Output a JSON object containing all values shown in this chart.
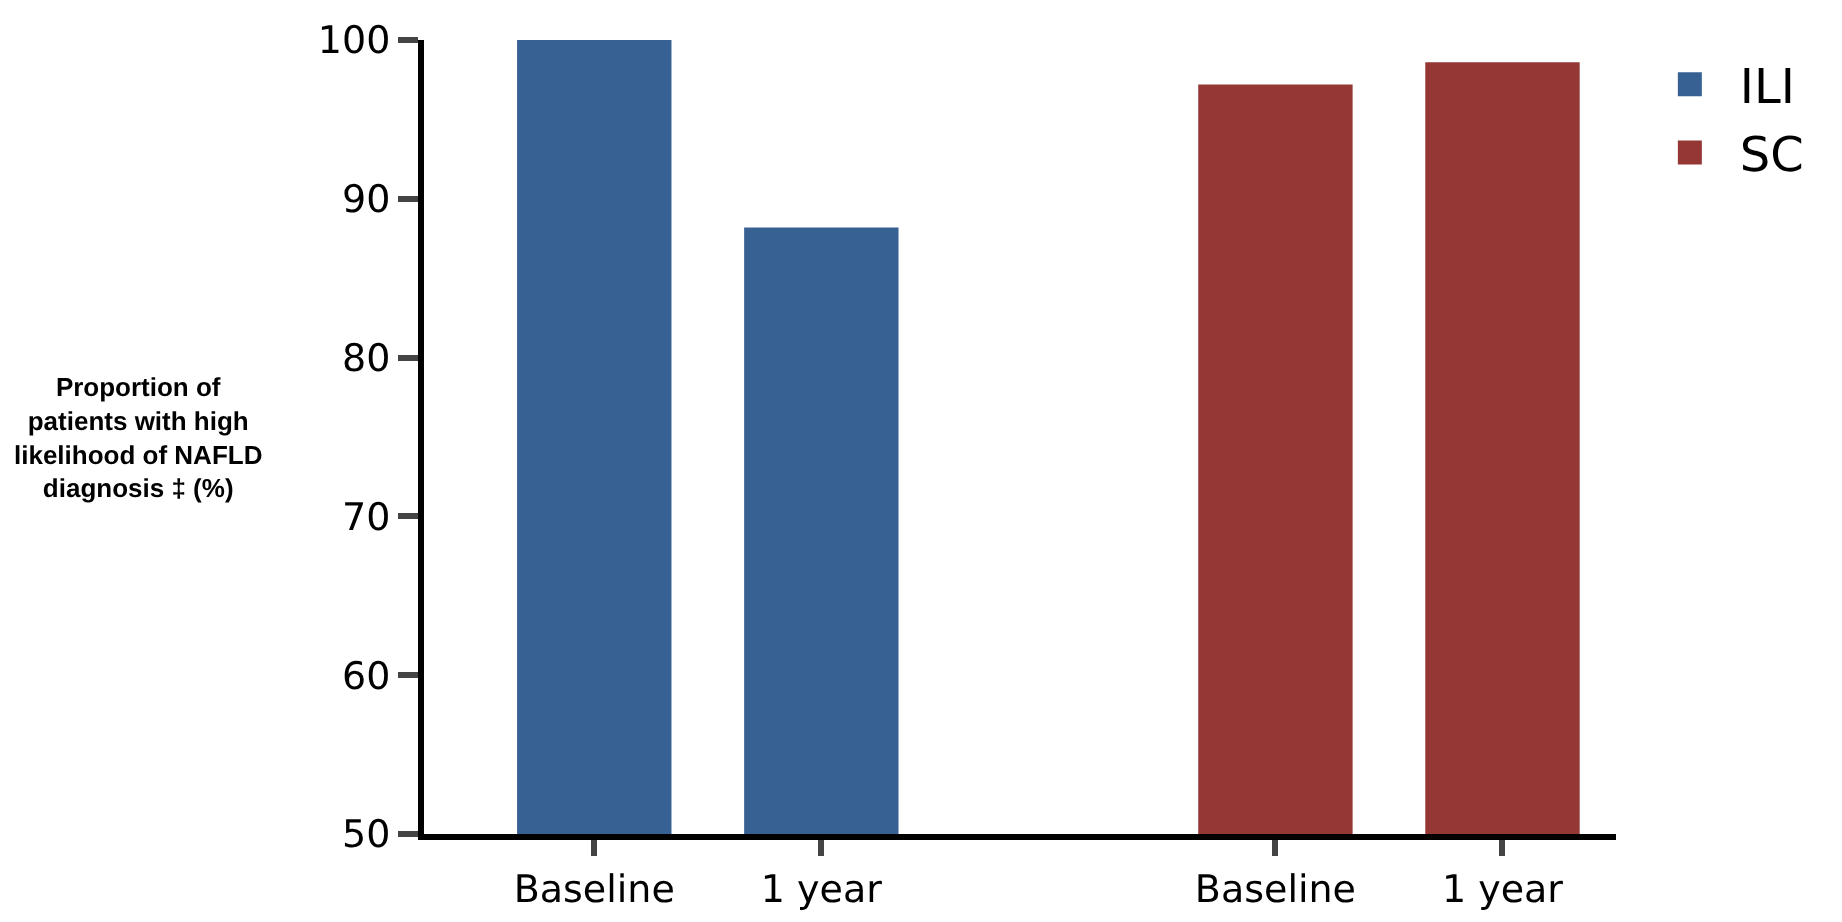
{
  "chart_data": {
    "type": "bar",
    "ylabel": "Proportion of patients with high likelihood of NAFLD diagnosis ‡ (%)",
    "categories": [
      "Baseline",
      "1 year",
      null,
      "Baseline",
      "1 year"
    ],
    "series": [
      {
        "name": "ILI",
        "color": "#376192",
        "values": [
          100,
          88.2,
          null,
          null,
          null
        ]
      },
      {
        "name": "SC",
        "color": "#953735",
        "values": [
          null,
          null,
          null,
          97.2,
          98.6
        ]
      }
    ],
    "ylim": [
      50,
      100
    ],
    "yticks": [
      50,
      60,
      70,
      80,
      90,
      100
    ],
    "grid": false,
    "legend": "top right"
  }
}
